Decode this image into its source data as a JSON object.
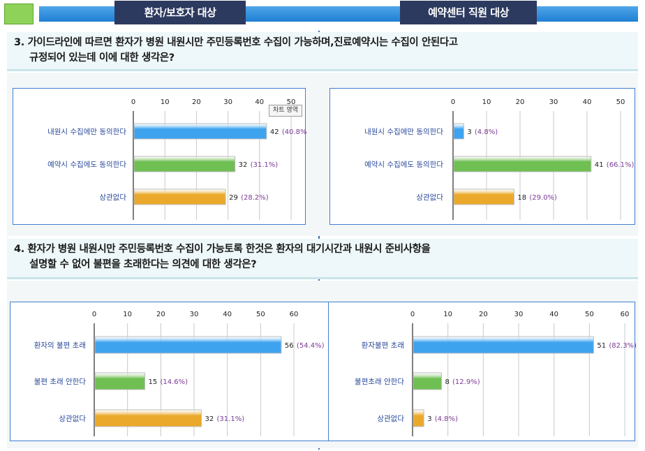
{
  "header": {
    "left_label": "환자/보호자 대상",
    "right_label": "예약센터 직원 대상"
  },
  "questions": [
    {
      "line1": "3. 가이드라인에 따르면 환자가 병원 내원시만 주민등록번호 수집이 가능하며,진료예약시는 수집이 안된다고",
      "line2": "규정되어 있는데 이에 대한 생각은?"
    },
    {
      "line1": "4. 환자가 병원 내원시만  주민등록번호 수집이 가능토록 한것은 환자의 대기시간과 내원시 준비사항을",
      "line2": "설명할 수 없어 불편을 초래한다는 의견에 대한 생각은?"
    }
  ],
  "tooltip": "차트 영역",
  "colors": {
    "blue": "#3ea3ee",
    "green": "#6fbf52",
    "orange": "#eaa92a",
    "pct_text": "#7b3a96",
    "label_text": "#2b4a9b"
  },
  "chart_data": [
    {
      "type": "bar",
      "orientation": "horizontal",
      "categories": [
        "내원시 수집에만 동의한다",
        "예약시 수집에도 동의한다",
        "상관없다"
      ],
      "values": [
        42,
        32,
        29
      ],
      "value_labels": [
        "42",
        "32",
        "29"
      ],
      "pct_labels": [
        "(40.8%)",
        "(31.1%)",
        "(28.2%)"
      ],
      "bar_colors": [
        "blue",
        "green",
        "orange"
      ],
      "xlim": [
        0,
        50
      ],
      "ticks": [
        0,
        10,
        20,
        30,
        40,
        50
      ],
      "grid": true
    },
    {
      "type": "bar",
      "orientation": "horizontal",
      "categories": [
        "내원시 수집에만 동의한다",
        "예약시 수집에도 동의한다",
        "상관없다"
      ],
      "values": [
        3,
        41,
        18
      ],
      "value_labels": [
        "3",
        "41",
        "18"
      ],
      "pct_labels": [
        "(4.8%)",
        "(66.1%)",
        "(29.0%)"
      ],
      "bar_colors": [
        "blue",
        "green",
        "orange"
      ],
      "xlim": [
        0,
        50
      ],
      "ticks": [
        0,
        10,
        20,
        30,
        40,
        50
      ],
      "grid": true
    },
    {
      "type": "bar",
      "orientation": "horizontal",
      "categories": [
        "환자의 불편 초래",
        "불편 초래 안한다",
        "상관없다"
      ],
      "values": [
        56,
        15,
        32
      ],
      "value_labels": [
        "56",
        "15",
        "32"
      ],
      "pct_labels": [
        "(54.4%)",
        "(14.6%)",
        "(31.1%)"
      ],
      "bar_colors": [
        "blue",
        "green",
        "orange"
      ],
      "xlim": [
        0,
        60
      ],
      "ticks": [
        0,
        10,
        20,
        30,
        40,
        50,
        60
      ],
      "grid": true
    },
    {
      "type": "bar",
      "orientation": "horizontal",
      "categories": [
        "환자불편 초래",
        "불편초래 안한다",
        "상관없다"
      ],
      "values": [
        51,
        8,
        3
      ],
      "value_labels": [
        "51",
        "8",
        "3"
      ],
      "pct_labels": [
        "(82.3%)",
        "(12.9%)",
        "(4.8%)"
      ],
      "bar_colors": [
        "blue",
        "green",
        "orange"
      ],
      "xlim": [
        0,
        60
      ],
      "ticks": [
        0,
        10,
        20,
        30,
        40,
        50,
        60
      ],
      "grid": true
    }
  ]
}
